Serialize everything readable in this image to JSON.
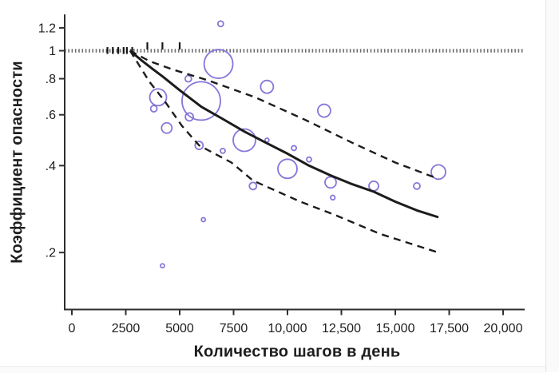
{
  "chart_data": {
    "type": "scatter",
    "subtype": "bubble scatter with meta-regression curve and dashed confidence band",
    "title": "",
    "xlabel": "Количество шагов в день",
    "ylabel": "Коэффициент опасности",
    "x_axis": {
      "ticks": [
        0,
        2500,
        5000,
        7500,
        10000,
        12500,
        15000,
        17500,
        20000
      ],
      "tick_labels": [
        "0",
        "2500",
        "5000",
        "7500",
        "10,000",
        "12,500",
        "15,000",
        "17,500",
        "20,000"
      ]
    },
    "y_axis": {
      "scale": "log",
      "ticks": [
        1.2,
        1,
        0.8,
        0.6,
        0.4,
        0.2
      ],
      "tick_labels": [
        "1.2",
        "1",
        ".8",
        ".6",
        ".4",
        ".2"
      ]
    },
    "reference_line": {
      "y": 1,
      "style": "dotted"
    },
    "rug_ticks": {
      "description": "small black ticks on the hazard-ratio = 1 line",
      "steps": [
        1650,
        1900,
        2150,
        2400,
        2550,
        2800,
        3500,
        4200,
        5000
      ]
    },
    "series": [
      {
        "name": "estimate",
        "style": "solid",
        "points": [
          [
            2700,
            1.0
          ],
          [
            3200,
            0.93
          ],
          [
            3700,
            0.87
          ],
          [
            4200,
            0.815
          ],
          [
            5000,
            0.73
          ],
          [
            6000,
            0.64
          ],
          [
            7000,
            0.58
          ],
          [
            8000,
            0.525
          ],
          [
            9000,
            0.48
          ],
          [
            10000,
            0.44
          ],
          [
            11000,
            0.4
          ],
          [
            12000,
            0.37
          ],
          [
            13000,
            0.345
          ],
          [
            14000,
            0.325
          ],
          [
            15000,
            0.3
          ],
          [
            16000,
            0.28
          ],
          [
            17000,
            0.265
          ]
        ]
      },
      {
        "name": "ci-upper",
        "style": "dashed",
        "points": [
          [
            2700,
            1.0
          ],
          [
            3600,
            0.92
          ],
          [
            4700,
            0.86
          ],
          [
            6300,
            0.79
          ],
          [
            8500,
            0.69
          ],
          [
            10850,
            0.575
          ],
          [
            13000,
            0.48
          ],
          [
            15000,
            0.41
          ],
          [
            17000,
            0.36
          ]
        ]
      },
      {
        "name": "ci-lower",
        "style": "dashed",
        "points": [
          [
            2700,
            1.0
          ],
          [
            3600,
            0.78
          ],
          [
            4300,
            0.67
          ],
          [
            5100,
            0.55
          ],
          [
            5900,
            0.47
          ],
          [
            7400,
            0.41
          ],
          [
            8400,
            0.355
          ],
          [
            10600,
            0.3
          ],
          [
            12200,
            0.27
          ],
          [
            14300,
            0.232
          ],
          [
            17000,
            0.2
          ]
        ]
      }
    ],
    "bubbles": [
      {
        "x": 6900,
        "y": 1.24,
        "r": 3.5
      },
      {
        "x": 6800,
        "y": 0.9,
        "r": 18
      },
      {
        "x": 5400,
        "y": 0.8,
        "r": 4
      },
      {
        "x": 9050,
        "y": 0.75,
        "r": 8
      },
      {
        "x": 4000,
        "y": 0.69,
        "r": 10.5
      },
      {
        "x": 6000,
        "y": 0.67,
        "r": 24
      },
      {
        "x": 3800,
        "y": 0.63,
        "r": 4
      },
      {
        "x": 11700,
        "y": 0.62,
        "r": 8
      },
      {
        "x": 5450,
        "y": 0.59,
        "r": 5
      },
      {
        "x": 4400,
        "y": 0.54,
        "r": 6.5
      },
      {
        "x": 8000,
        "y": 0.49,
        "r": 14
      },
      {
        "x": 9050,
        "y": 0.49,
        "r": 2.5
      },
      {
        "x": 5900,
        "y": 0.47,
        "r": 5
      },
      {
        "x": 10300,
        "y": 0.46,
        "r": 3
      },
      {
        "x": 7000,
        "y": 0.45,
        "r": 3
      },
      {
        "x": 11000,
        "y": 0.42,
        "r": 3
      },
      {
        "x": 10000,
        "y": 0.39,
        "r": 12
      },
      {
        "x": 12000,
        "y": 0.35,
        "r": 7
      },
      {
        "x": 8400,
        "y": 0.34,
        "r": 4.5
      },
      {
        "x": 14000,
        "y": 0.34,
        "r": 6
      },
      {
        "x": 16000,
        "y": 0.34,
        "r": 4
      },
      {
        "x": 17000,
        "y": 0.38,
        "r": 9
      },
      {
        "x": 12100,
        "y": 0.31,
        "r": 2.8
      },
      {
        "x": 6100,
        "y": 0.26,
        "r": 2.5
      },
      {
        "x": 4200,
        "y": 0.18,
        "r": 2.5
      }
    ],
    "colors": {
      "bubble": "#8677d9",
      "line": "#1c1c1c",
      "reference": "#6f6f6f",
      "axis": "#2e2e2e",
      "text": "#1d1d1f",
      "frame_edge": "#e4e4e4"
    },
    "legend": false,
    "grid": false
  }
}
